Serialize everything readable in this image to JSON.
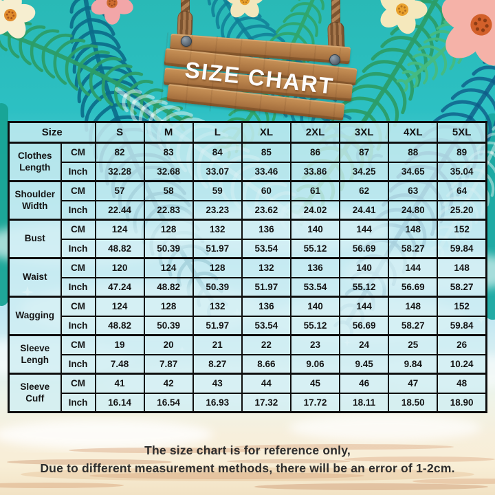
{
  "sign": {
    "text": "SIZE CHART"
  },
  "chart_data": {
    "type": "table",
    "title": "SIZE CHART",
    "corner_label": "Size",
    "columns": [
      "S",
      "M",
      "L",
      "XL",
      "2XL",
      "3XL",
      "4XL",
      "5XL"
    ],
    "unit_labels": [
      "CM",
      "Inch"
    ],
    "rows": [
      {
        "label": "Clothes Length",
        "cm": [
          "82",
          "83",
          "84",
          "85",
          "86",
          "87",
          "88",
          "89"
        ],
        "inch": [
          "32.28",
          "32.68",
          "33.07",
          "33.46",
          "33.86",
          "34.25",
          "34.65",
          "35.04"
        ]
      },
      {
        "label": "Shoulder Width",
        "cm": [
          "57",
          "58",
          "59",
          "60",
          "61",
          "62",
          "63",
          "64"
        ],
        "inch": [
          "22.44",
          "22.83",
          "23.23",
          "23.62",
          "24.02",
          "24.41",
          "24.80",
          "25.20"
        ]
      },
      {
        "label": "Bust",
        "cm": [
          "124",
          "128",
          "132",
          "136",
          "140",
          "144",
          "148",
          "152"
        ],
        "inch": [
          "48.82",
          "50.39",
          "51.97",
          "53.54",
          "55.12",
          "56.69",
          "58.27",
          "59.84"
        ]
      },
      {
        "label": "Waist",
        "cm": [
          "120",
          "124",
          "128",
          "132",
          "136",
          "140",
          "144",
          "148"
        ],
        "inch": [
          "47.24",
          "48.82",
          "50.39",
          "51.97",
          "53.54",
          "55.12",
          "56.69",
          "58.27"
        ]
      },
      {
        "label": "Wagging",
        "cm": [
          "124",
          "128",
          "132",
          "136",
          "140",
          "144",
          "148",
          "152"
        ],
        "inch": [
          "48.82",
          "50.39",
          "51.97",
          "53.54",
          "55.12",
          "56.69",
          "58.27",
          "59.84"
        ]
      },
      {
        "label": "Sleeve Lengh",
        "cm": [
          "19",
          "20",
          "21",
          "22",
          "23",
          "24",
          "25",
          "26"
        ],
        "inch": [
          "7.48",
          "7.87",
          "8.27",
          "8.66",
          "9.06",
          "9.45",
          "9.84",
          "10.24"
        ]
      },
      {
        "label": "Sleeve Cuff",
        "cm": [
          "41",
          "42",
          "43",
          "44",
          "45",
          "46",
          "47",
          "48"
        ],
        "inch": [
          "16.14",
          "16.54",
          "16.93",
          "17.32",
          "17.72",
          "18.11",
          "18.50",
          "18.90"
        ]
      }
    ]
  },
  "footer": {
    "line1": "The size chart is for reference only,",
    "line2": "Due to different measurement methods, there will be an error of 1-2cm."
  },
  "colors": {
    "background_teal": "#2bbcbd",
    "sky_blue": "#a9dff0",
    "sand": "#f7ecd6",
    "table_cell_bg": "#d0eef3",
    "table_border": "#0e0e0e",
    "wood": "#b07c48",
    "rope": "#9c6f47",
    "sign_text": "#fdfdfd",
    "palm_dark": "#0c6c8a",
    "palm_green": "#2b9d68",
    "text_dark": "#141414"
  },
  "decor": {
    "icons": [
      "palm-leaf-icon",
      "plumeria-flower-icon",
      "hibiscus-flower-icon",
      "rope-icon",
      "wooden-sign-icon",
      "cloud-icon",
      "sparkle-icon",
      "sand-streak-icon"
    ]
  }
}
